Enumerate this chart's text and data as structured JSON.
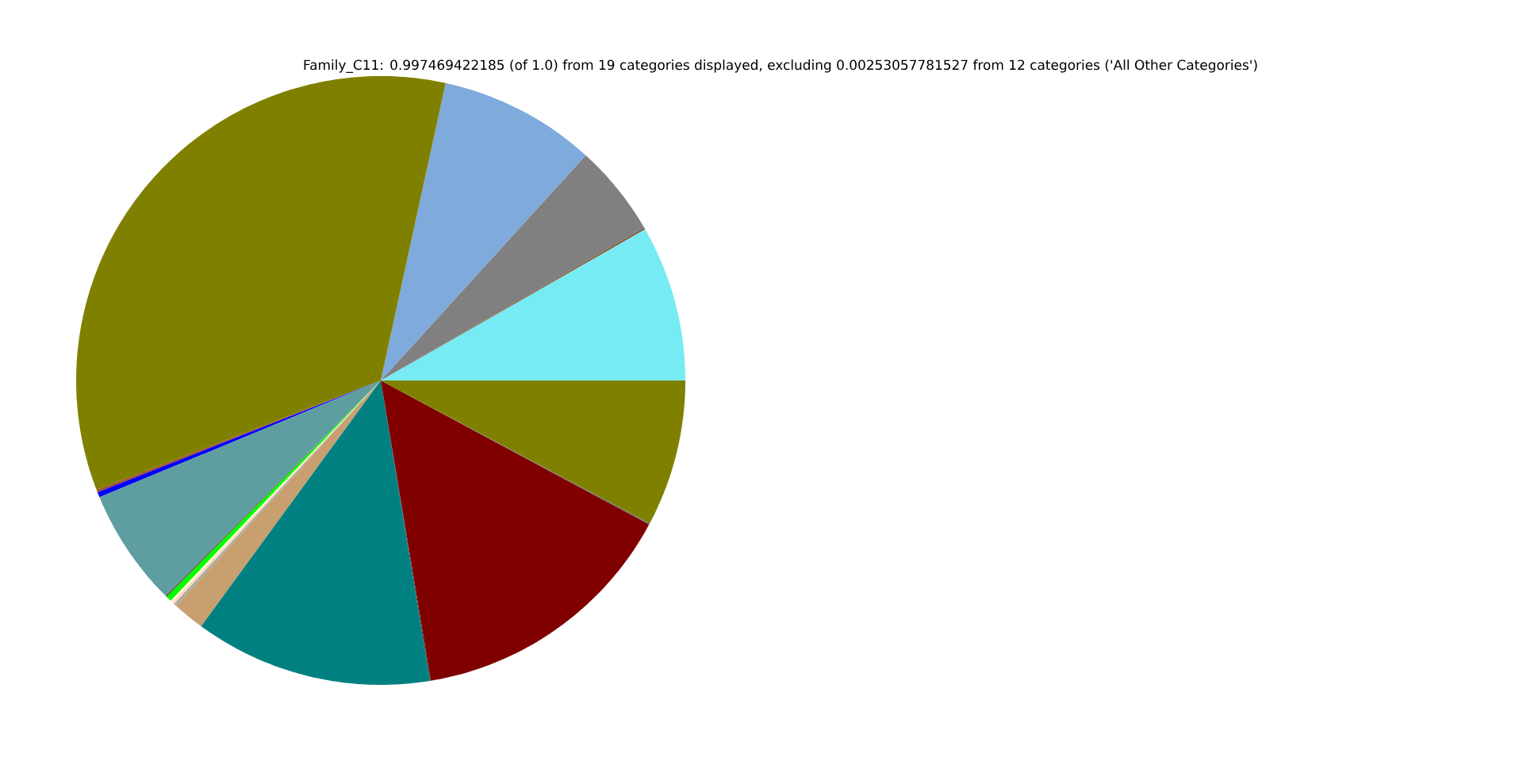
{
  "chart_data": {
    "type": "pie",
    "title": "Family_C11: 0.997469422185 (of 1.0) from 19 categories displayed, excluding 0.00253057781527 from 12 categories ('All Other Categories')",
    "categories": [
      null,
      null,
      null,
      null,
      null,
      null,
      null,
      null,
      null,
      null,
      null,
      null,
      null,
      null,
      null,
      null,
      null,
      null,
      null
    ],
    "values": [
      8.28,
      0.08,
      4.89,
      8.33,
      34.27,
      0.14,
      0.28,
      6.25,
      0.08,
      0.28,
      0.11,
      0.14,
      0.14,
      1.69,
      12.61,
      0.06,
      14.53,
      0.06,
      7.78
    ],
    "colors": [
      "#77ebf3",
      "#8b4513",
      "#808080",
      "#7eaadc",
      "#808000",
      "#a0522d",
      "#0000ff",
      "#5f9ea0",
      "#556b2f",
      "#00ff00",
      "#fffacd",
      "#ffdab9",
      "#a9a9a9",
      "#c8a070",
      "#008080",
      "#2f4f4f",
      "#800000",
      "#696969",
      "#808000"
    ]
  }
}
